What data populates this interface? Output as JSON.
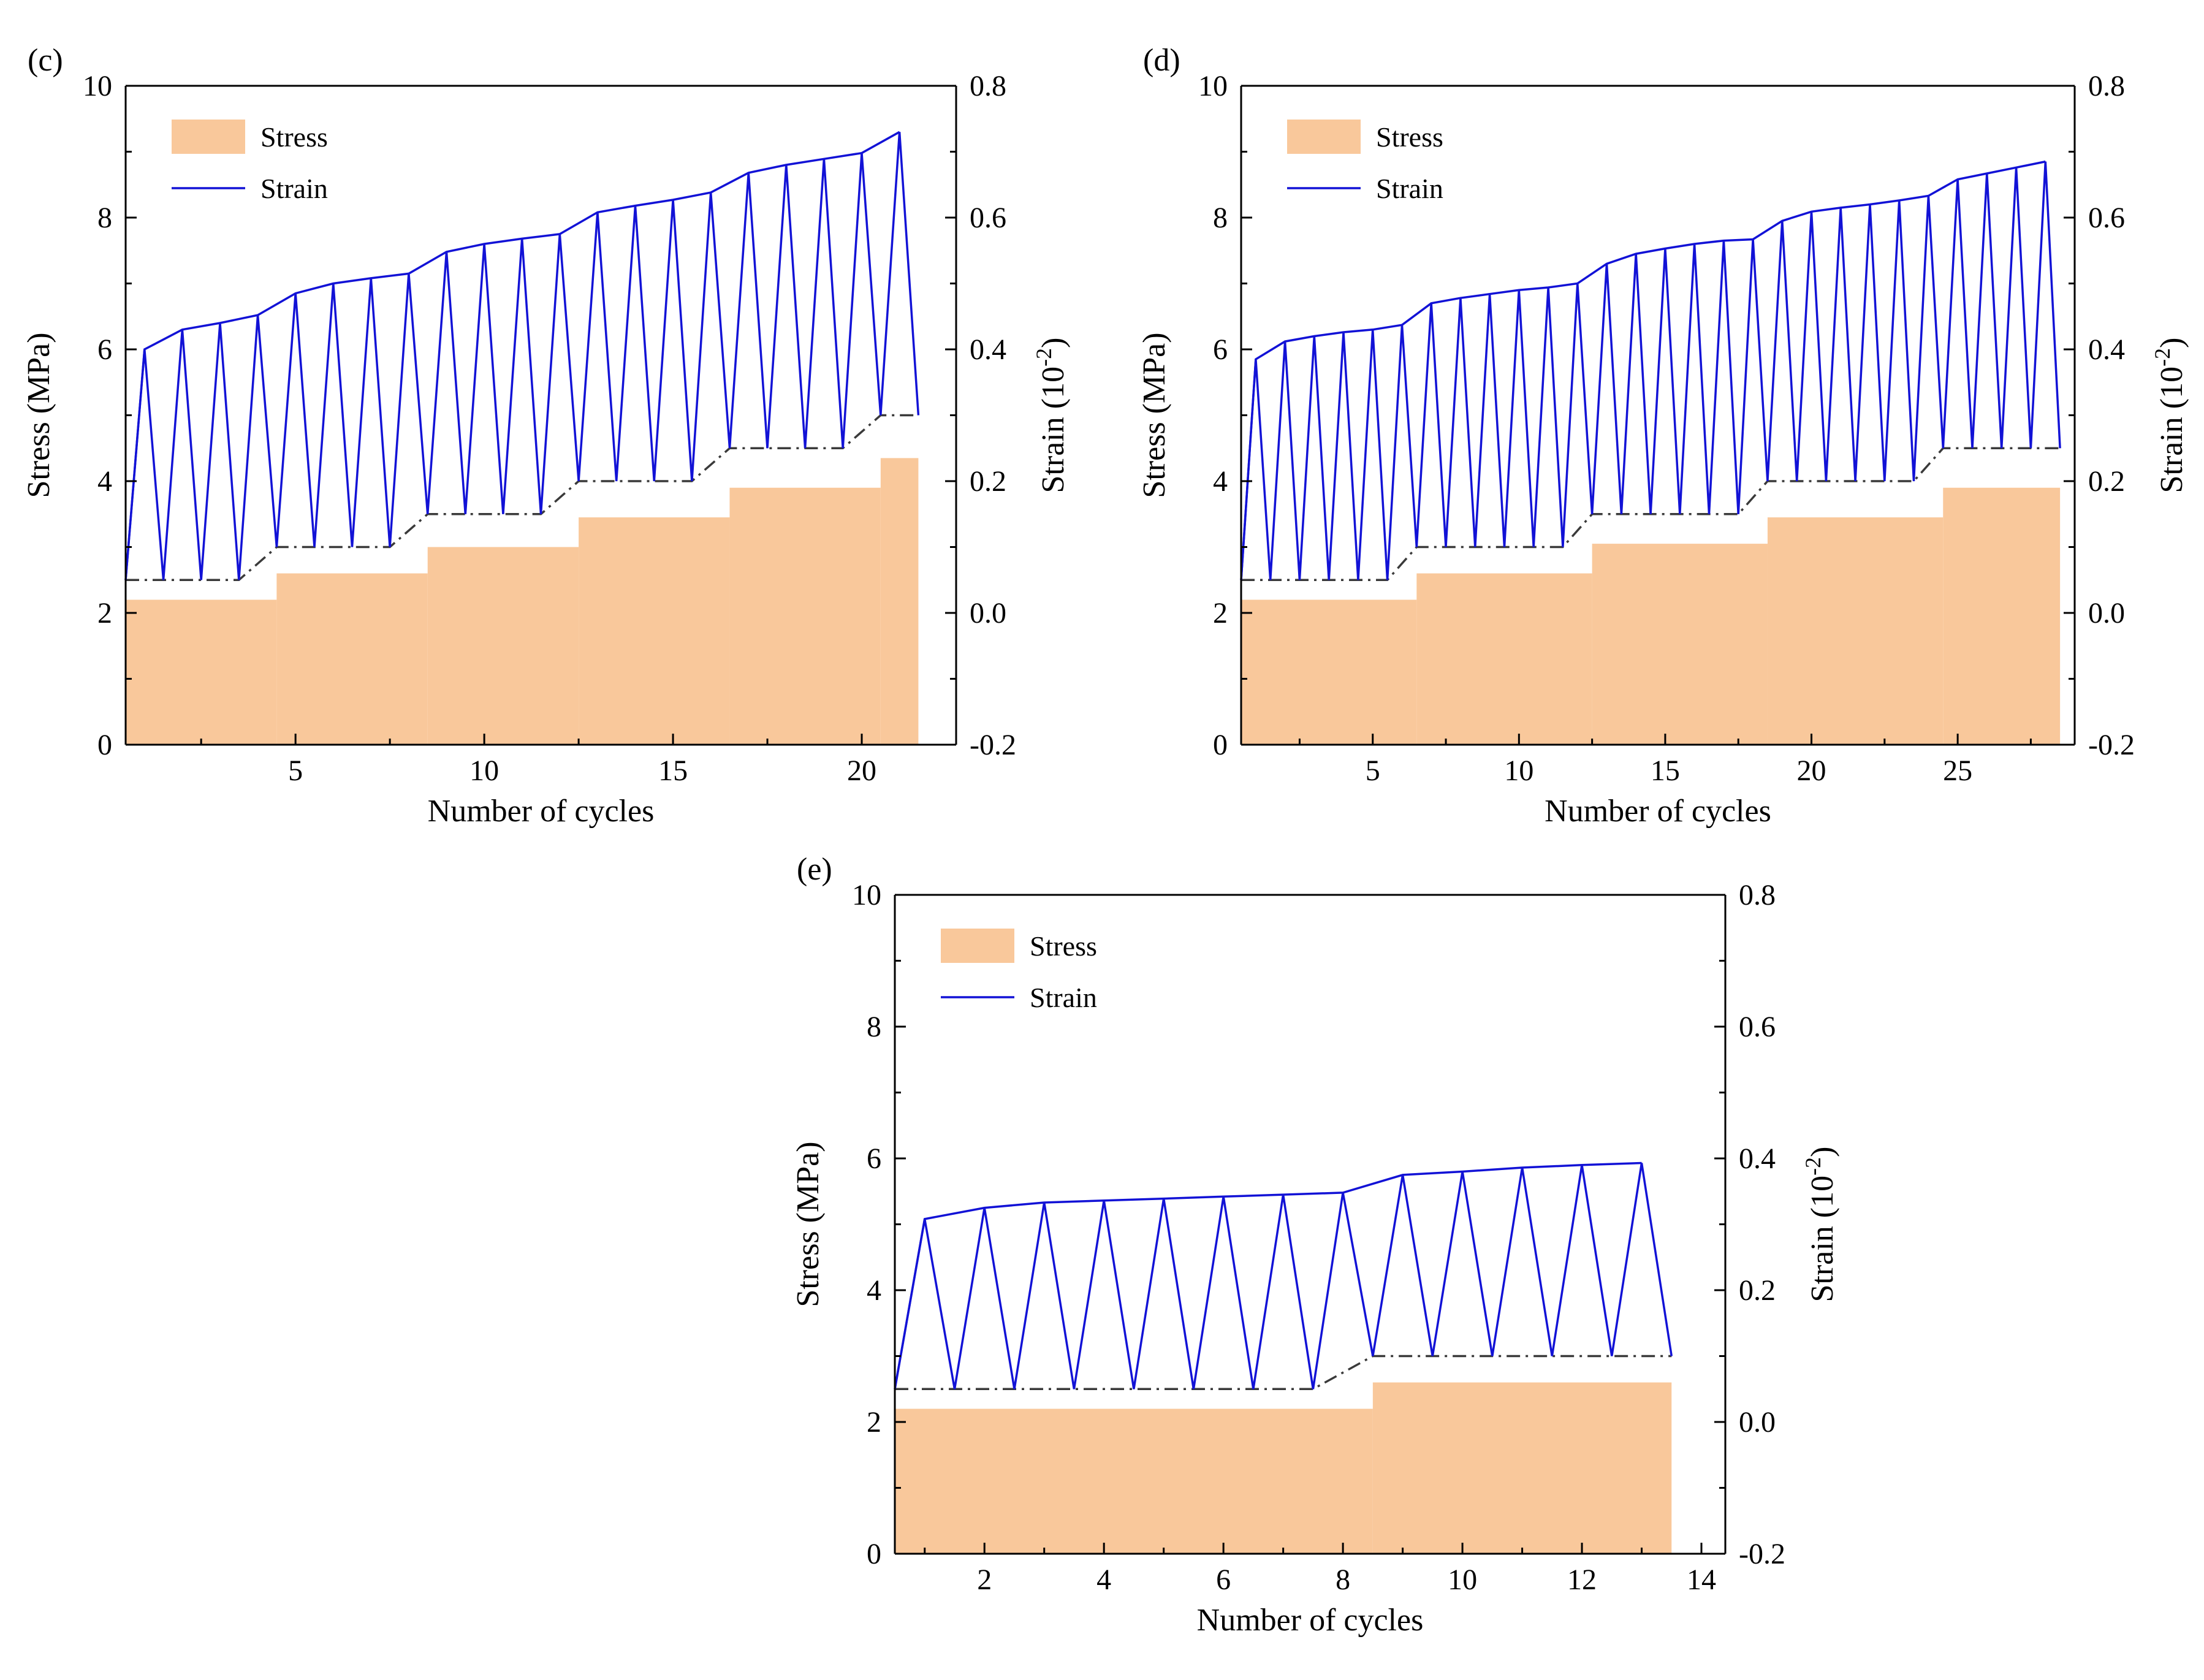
{
  "colors": {
    "stress_fill": "#F9C89B",
    "strain_line": "#1212D6",
    "baseline_dash": "#3a3a3a",
    "axis": "#000000",
    "background": "#FFFFFF"
  },
  "chart_data": [
    {
      "panel_label": "(c)",
      "type": "bar+line",
      "xlabel": "Number of cycles",
      "ylabel_left": "Stress (MPa)",
      "ylabel_right_base": "Strain (10",
      "ylabel_right_exp": "-2",
      "ylabel_right_tail": ")",
      "xlim": [
        0.5,
        22.5
      ],
      "ylim_left": [
        0,
        10
      ],
      "ylim_right": [
        -0.2,
        0.8
      ],
      "xticks": [
        5,
        10,
        15,
        20
      ],
      "yticks_left": [
        0,
        2,
        4,
        6,
        8,
        10
      ],
      "yticks_right": [
        -0.2,
        0.0,
        0.2,
        0.4,
        0.6,
        0.8
      ],
      "yticklabels_right": [
        "-0.2",
        "0.0",
        "0.2",
        "0.4",
        "0.6",
        "0.8"
      ],
      "legend": {
        "stress_label": "Stress",
        "strain_label": "Strain",
        "position": "top-left"
      },
      "stress_steps": [
        {
          "x0": 0.5,
          "x1": 4.5,
          "stress": 2.2
        },
        {
          "x0": 4.5,
          "x1": 8.5,
          "stress": 2.6
        },
        {
          "x0": 8.5,
          "x1": 12.5,
          "stress": 3.0
        },
        {
          "x0": 12.5,
          "x1": 16.5,
          "stress": 3.45
        },
        {
          "x0": 16.5,
          "x1": 20.5,
          "stress": 3.9
        },
        {
          "x0": 20.5,
          "x1": 21.5,
          "stress": 4.35
        }
      ],
      "strain_peaks": [
        {
          "x": 1,
          "strain": 0.4
        },
        {
          "x": 2,
          "strain": 0.43
        },
        {
          "x": 3,
          "strain": 0.44
        },
        {
          "x": 4,
          "strain": 0.452
        },
        {
          "x": 5,
          "strain": 0.485
        },
        {
          "x": 6,
          "strain": 0.5
        },
        {
          "x": 7,
          "strain": 0.508
        },
        {
          "x": 8,
          "strain": 0.515
        },
        {
          "x": 9,
          "strain": 0.548
        },
        {
          "x": 10,
          "strain": 0.56
        },
        {
          "x": 11,
          "strain": 0.568
        },
        {
          "x": 12,
          "strain": 0.575
        },
        {
          "x": 13,
          "strain": 0.608
        },
        {
          "x": 14,
          "strain": 0.618
        },
        {
          "x": 15,
          "strain": 0.627
        },
        {
          "x": 16,
          "strain": 0.638
        },
        {
          "x": 17,
          "strain": 0.668
        },
        {
          "x": 18,
          "strain": 0.68
        },
        {
          "x": 19,
          "strain": 0.689
        },
        {
          "x": 20,
          "strain": 0.698
        },
        {
          "x": 21,
          "strain": 0.73
        }
      ],
      "strain_valleys": [
        {
          "x": 0.5,
          "strain": 0.05
        },
        {
          "x": 1.5,
          "strain": 0.05
        },
        {
          "x": 2.5,
          "strain": 0.05
        },
        {
          "x": 3.5,
          "strain": 0.05
        },
        {
          "x": 4.5,
          "strain": 0.1
        },
        {
          "x": 5.5,
          "strain": 0.1
        },
        {
          "x": 6.5,
          "strain": 0.1
        },
        {
          "x": 7.5,
          "strain": 0.1
        },
        {
          "x": 8.5,
          "strain": 0.15
        },
        {
          "x": 9.5,
          "strain": 0.15
        },
        {
          "x": 10.5,
          "strain": 0.15
        },
        {
          "x": 11.5,
          "strain": 0.15
        },
        {
          "x": 12.5,
          "strain": 0.2
        },
        {
          "x": 13.5,
          "strain": 0.2
        },
        {
          "x": 14.5,
          "strain": 0.2
        },
        {
          "x": 15.5,
          "strain": 0.2
        },
        {
          "x": 16.5,
          "strain": 0.25
        },
        {
          "x": 17.5,
          "strain": 0.25
        },
        {
          "x": 18.5,
          "strain": 0.25
        },
        {
          "x": 19.5,
          "strain": 0.25
        },
        {
          "x": 20.5,
          "strain": 0.3
        },
        {
          "x": 21.5,
          "strain": 0.3
        }
      ]
    },
    {
      "panel_label": "(d)",
      "type": "bar+line",
      "xlabel": "Number of cycles",
      "ylabel_left": "Stress (MPa)",
      "ylabel_right_base": "Strain (10",
      "ylabel_right_exp": "-2",
      "ylabel_right_tail": ")",
      "xlim": [
        0.5,
        29
      ],
      "ylim_left": [
        0,
        10
      ],
      "ylim_right": [
        -0.2,
        0.8
      ],
      "xticks": [
        5,
        10,
        15,
        20,
        25
      ],
      "yticks_left": [
        0,
        2,
        4,
        6,
        8,
        10
      ],
      "yticks_right": [
        -0.2,
        0.0,
        0.2,
        0.4,
        0.6,
        0.8
      ],
      "yticklabels_right": [
        "-0.2",
        "0.0",
        "0.2",
        "0.4",
        "0.6",
        "0.8"
      ],
      "legend": {
        "stress_label": "Stress",
        "strain_label": "Strain",
        "position": "top-left"
      },
      "stress_steps": [
        {
          "x0": 0.5,
          "x1": 6.5,
          "stress": 2.2
        },
        {
          "x0": 6.5,
          "x1": 12.5,
          "stress": 2.6
        },
        {
          "x0": 12.5,
          "x1": 18.5,
          "stress": 3.05
        },
        {
          "x0": 18.5,
          "x1": 24.5,
          "stress": 3.45
        },
        {
          "x0": 24.5,
          "x1": 28.5,
          "stress": 3.9
        }
      ],
      "strain_peaks": [
        {
          "x": 1,
          "strain": 0.385
        },
        {
          "x": 2,
          "strain": 0.412
        },
        {
          "x": 3,
          "strain": 0.42
        },
        {
          "x": 4,
          "strain": 0.426
        },
        {
          "x": 5,
          "strain": 0.43
        },
        {
          "x": 6,
          "strain": 0.437
        },
        {
          "x": 7,
          "strain": 0.47
        },
        {
          "x": 8,
          "strain": 0.478
        },
        {
          "x": 9,
          "strain": 0.484
        },
        {
          "x": 10,
          "strain": 0.49
        },
        {
          "x": 11,
          "strain": 0.494
        },
        {
          "x": 12,
          "strain": 0.5
        },
        {
          "x": 13,
          "strain": 0.53
        },
        {
          "x": 14,
          "strain": 0.545
        },
        {
          "x": 15,
          "strain": 0.553
        },
        {
          "x": 16,
          "strain": 0.56
        },
        {
          "x": 17,
          "strain": 0.565
        },
        {
          "x": 18,
          "strain": 0.567
        },
        {
          "x": 19,
          "strain": 0.595
        },
        {
          "x": 20,
          "strain": 0.609
        },
        {
          "x": 21,
          "strain": 0.615
        },
        {
          "x": 22,
          "strain": 0.62
        },
        {
          "x": 23,
          "strain": 0.626
        },
        {
          "x": 24,
          "strain": 0.633
        },
        {
          "x": 25,
          "strain": 0.658
        },
        {
          "x": 26,
          "strain": 0.667
        },
        {
          "x": 27,
          "strain": 0.676
        },
        {
          "x": 28,
          "strain": 0.685
        }
      ],
      "strain_valleys": [
        {
          "x": 0.5,
          "strain": 0.05
        },
        {
          "x": 1.5,
          "strain": 0.05
        },
        {
          "x": 2.5,
          "strain": 0.05
        },
        {
          "x": 3.5,
          "strain": 0.05
        },
        {
          "x": 4.5,
          "strain": 0.05
        },
        {
          "x": 5.5,
          "strain": 0.05
        },
        {
          "x": 6.5,
          "strain": 0.1
        },
        {
          "x": 7.5,
          "strain": 0.1
        },
        {
          "x": 8.5,
          "strain": 0.1
        },
        {
          "x": 9.5,
          "strain": 0.1
        },
        {
          "x": 10.5,
          "strain": 0.1
        },
        {
          "x": 11.5,
          "strain": 0.1
        },
        {
          "x": 12.5,
          "strain": 0.15
        },
        {
          "x": 13.5,
          "strain": 0.15
        },
        {
          "x": 14.5,
          "strain": 0.15
        },
        {
          "x": 15.5,
          "strain": 0.15
        },
        {
          "x": 16.5,
          "strain": 0.15
        },
        {
          "x": 17.5,
          "strain": 0.15
        },
        {
          "x": 18.5,
          "strain": 0.2
        },
        {
          "x": 19.5,
          "strain": 0.2
        },
        {
          "x": 20.5,
          "strain": 0.2
        },
        {
          "x": 21.5,
          "strain": 0.2
        },
        {
          "x": 22.5,
          "strain": 0.2
        },
        {
          "x": 23.5,
          "strain": 0.2
        },
        {
          "x": 24.5,
          "strain": 0.25
        },
        {
          "x": 25.5,
          "strain": 0.25
        },
        {
          "x": 26.5,
          "strain": 0.25
        },
        {
          "x": 27.5,
          "strain": 0.25
        },
        {
          "x": 28.5,
          "strain": 0.25
        }
      ]
    },
    {
      "panel_label": "(e)",
      "type": "bar+line",
      "xlabel": "Number of cycles",
      "ylabel_left": "Stress (MPa)",
      "ylabel_right_base": "Strain (10",
      "ylabel_right_exp": "-2",
      "ylabel_right_tail": ")",
      "xlim": [
        0.5,
        14.4
      ],
      "ylim_left": [
        0,
        10
      ],
      "ylim_right": [
        -0.2,
        0.8
      ],
      "xticks": [
        2,
        4,
        6,
        8,
        10,
        12,
        14
      ],
      "yticks_left": [
        0,
        2,
        4,
        6,
        8,
        10
      ],
      "yticks_right": [
        -0.2,
        0.0,
        0.2,
        0.4,
        0.6,
        0.8
      ],
      "yticklabels_right": [
        "-0.2",
        "0.0",
        "0.2",
        "0.4",
        "0.6",
        "0.8"
      ],
      "legend": {
        "stress_label": "Stress",
        "strain_label": "Strain",
        "position": "top-left"
      },
      "stress_steps": [
        {
          "x0": 0.5,
          "x1": 8.5,
          "stress": 2.2
        },
        {
          "x0": 8.5,
          "x1": 13.5,
          "stress": 2.6
        }
      ],
      "strain_peaks": [
        {
          "x": 1,
          "strain": 0.308
        },
        {
          "x": 2,
          "strain": 0.325
        },
        {
          "x": 3,
          "strain": 0.333
        },
        {
          "x": 4,
          "strain": 0.336
        },
        {
          "x": 5,
          "strain": 0.339
        },
        {
          "x": 6,
          "strain": 0.342
        },
        {
          "x": 7,
          "strain": 0.345
        },
        {
          "x": 8,
          "strain": 0.348
        },
        {
          "x": 9,
          "strain": 0.375
        },
        {
          "x": 10,
          "strain": 0.38
        },
        {
          "x": 11,
          "strain": 0.386
        },
        {
          "x": 12,
          "strain": 0.39
        },
        {
          "x": 13,
          "strain": 0.393
        }
      ],
      "strain_valleys": [
        {
          "x": 0.5,
          "strain": 0.05
        },
        {
          "x": 1.5,
          "strain": 0.05
        },
        {
          "x": 2.5,
          "strain": 0.05
        },
        {
          "x": 3.5,
          "strain": 0.05
        },
        {
          "x": 4.5,
          "strain": 0.05
        },
        {
          "x": 5.5,
          "strain": 0.05
        },
        {
          "x": 6.5,
          "strain": 0.05
        },
        {
          "x": 7.5,
          "strain": 0.05
        },
        {
          "x": 8.5,
          "strain": 0.1
        },
        {
          "x": 9.5,
          "strain": 0.1
        },
        {
          "x": 10.5,
          "strain": 0.1
        },
        {
          "x": 11.5,
          "strain": 0.1
        },
        {
          "x": 12.5,
          "strain": 0.1
        },
        {
          "x": 13.5,
          "strain": 0.1
        }
      ]
    }
  ]
}
